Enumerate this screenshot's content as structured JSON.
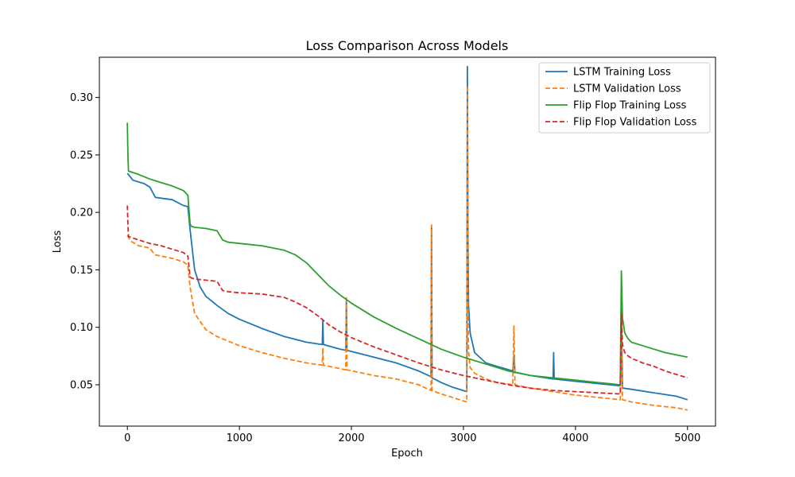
{
  "chart_data": {
    "type": "line",
    "title": "Loss Comparison Across Models",
    "xlabel": "Epoch",
    "ylabel": "Loss",
    "xlim": [
      -250,
      5250
    ],
    "ylim": [
      0.014,
      0.335
    ],
    "xticks": [
      0,
      1000,
      2000,
      3000,
      4000,
      5000
    ],
    "yticks": [
      0.05,
      0.1,
      0.15,
      0.2,
      0.25,
      0.3
    ],
    "ytick_labels": [
      "0.05",
      "0.10",
      "0.15",
      "0.20",
      "0.25",
      "0.30"
    ],
    "grid": false,
    "legend_position": "top-right",
    "series": [
      {
        "name": "LSTM Training Loss",
        "color": "#1f77b4",
        "style": "solid",
        "x": [
          0,
          50,
          150,
          200,
          250,
          400,
          500,
          540,
          560,
          600,
          650,
          700,
          800,
          900,
          1000,
          1200,
          1400,
          1600,
          1740,
          1745,
          1750,
          1900,
          1950,
          1955,
          1960,
          2200,
          2400,
          2600,
          2710,
          2715,
          2720,
          2800,
          2900,
          3030,
          3035,
          3040,
          3045,
          3060,
          3100,
          3200,
          3300,
          3440,
          3450,
          3460,
          3600,
          3800,
          3805,
          3810,
          4000,
          4200,
          4400,
          4410,
          4420,
          4430,
          4500,
          4700,
          4900,
          5000
        ],
        "y": [
          0.234,
          0.228,
          0.225,
          0.222,
          0.213,
          0.211,
          0.206,
          0.205,
          0.185,
          0.15,
          0.135,
          0.127,
          0.119,
          0.112,
          0.107,
          0.099,
          0.092,
          0.087,
          0.085,
          0.106,
          0.085,
          0.081,
          0.08,
          0.125,
          0.08,
          0.074,
          0.069,
          0.062,
          0.057,
          0.187,
          0.056,
          0.052,
          0.048,
          0.044,
          0.327,
          0.18,
          0.12,
          0.095,
          0.078,
          0.069,
          0.066,
          0.062,
          0.075,
          0.061,
          0.058,
          0.055,
          0.078,
          0.055,
          0.053,
          0.051,
          0.049,
          0.11,
          0.047,
          0.047,
          0.046,
          0.043,
          0.04,
          0.037
        ]
      },
      {
        "name": "LSTM Validation Loss",
        "color": "#ff7f0e",
        "style": "dashed",
        "x": [
          0,
          30,
          100,
          200,
          230,
          250,
          400,
          500,
          540,
          560,
          600,
          700,
          800,
          900,
          1000,
          1200,
          1400,
          1600,
          1740,
          1745,
          1750,
          1900,
          1950,
          1955,
          1960,
          2200,
          2400,
          2600,
          2710,
          2715,
          2720,
          2800,
          2900,
          3030,
          3035,
          3040,
          3045,
          3060,
          3100,
          3200,
          3300,
          3440,
          3450,
          3460,
          3600,
          3800,
          4000,
          4200,
          4400,
          4410,
          4420,
          4500,
          4700,
          4900,
          5000
        ],
        "y": [
          0.18,
          0.175,
          0.171,
          0.169,
          0.165,
          0.163,
          0.16,
          0.157,
          0.154,
          0.135,
          0.112,
          0.098,
          0.092,
          0.088,
          0.084,
          0.078,
          0.073,
          0.069,
          0.067,
          0.082,
          0.067,
          0.064,
          0.063,
          0.127,
          0.063,
          0.058,
          0.055,
          0.05,
          0.045,
          0.189,
          0.045,
          0.042,
          0.039,
          0.035,
          0.31,
          0.12,
          0.08,
          0.065,
          0.06,
          0.055,
          0.052,
          0.05,
          0.101,
          0.05,
          0.047,
          0.044,
          0.041,
          0.039,
          0.037,
          0.09,
          0.037,
          0.035,
          0.032,
          0.03,
          0.028
        ]
      },
      {
        "name": "Flip Flop Training Loss",
        "color": "#2ca02c",
        "style": "solid",
        "x": [
          0,
          5,
          10,
          100,
          200,
          300,
          400,
          500,
          540,
          560,
          570,
          600,
          700,
          800,
          850,
          900,
          1000,
          1200,
          1400,
          1500,
          1600,
          1700,
          1800,
          1900,
          2000,
          2200,
          2400,
          2600,
          2800,
          3000,
          3200,
          3400,
          3600,
          3800,
          4000,
          4200,
          4400,
          4410,
          4420,
          4440,
          4470,
          4500,
          4600,
          4700,
          4800,
          4900,
          5000
        ],
        "y": [
          0.278,
          0.25,
          0.236,
          0.233,
          0.229,
          0.226,
          0.223,
          0.219,
          0.215,
          0.19,
          0.188,
          0.187,
          0.186,
          0.184,
          0.176,
          0.174,
          0.173,
          0.171,
          0.167,
          0.163,
          0.156,
          0.146,
          0.136,
          0.128,
          0.121,
          0.109,
          0.099,
          0.09,
          0.081,
          0.074,
          0.068,
          0.062,
          0.058,
          0.056,
          0.054,
          0.052,
          0.05,
          0.149,
          0.108,
          0.095,
          0.09,
          0.087,
          0.084,
          0.081,
          0.078,
          0.076,
          0.074
        ]
      },
      {
        "name": "Flip Flop Validation Loss",
        "color": "#d62728",
        "style": "dashed",
        "x": [
          0,
          5,
          10,
          100,
          200,
          300,
          400,
          500,
          540,
          560,
          570,
          600,
          700,
          800,
          850,
          900,
          1000,
          1200,
          1400,
          1500,
          1600,
          1700,
          1800,
          1900,
          2000,
          2200,
          2400,
          2600,
          2800,
          3000,
          3200,
          3400,
          3600,
          3800,
          4000,
          4200,
          4400,
          4410,
          4420,
          4440,
          4470,
          4500,
          4600,
          4700,
          4800,
          4900,
          5000
        ],
        "y": [
          0.206,
          0.19,
          0.179,
          0.176,
          0.173,
          0.171,
          0.168,
          0.165,
          0.162,
          0.144,
          0.143,
          0.142,
          0.141,
          0.14,
          0.132,
          0.131,
          0.13,
          0.129,
          0.126,
          0.122,
          0.117,
          0.11,
          0.102,
          0.096,
          0.091,
          0.083,
          0.076,
          0.069,
          0.063,
          0.058,
          0.054,
          0.05,
          0.047,
          0.045,
          0.044,
          0.043,
          0.042,
          0.112,
          0.085,
          0.078,
          0.075,
          0.073,
          0.069,
          0.066,
          0.062,
          0.059,
          0.056
        ]
      }
    ]
  }
}
